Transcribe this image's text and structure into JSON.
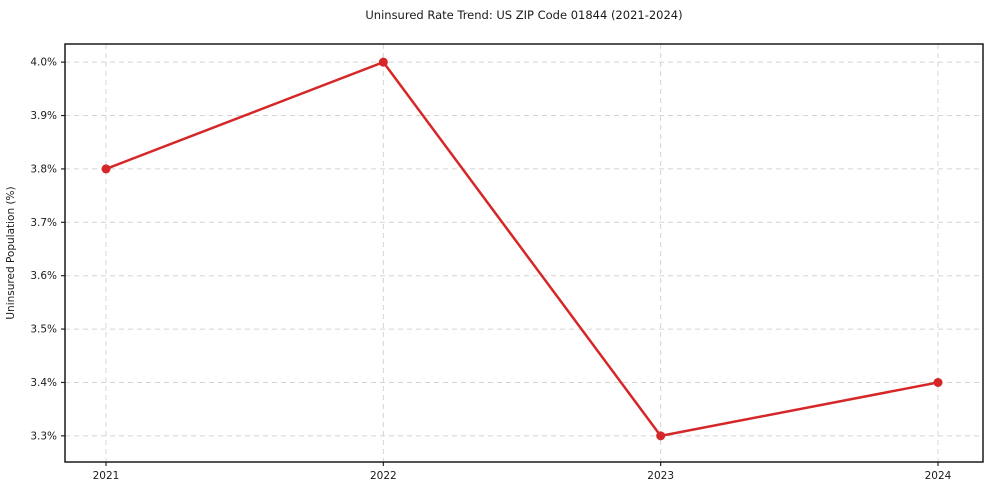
{
  "chart_data": {
    "type": "line",
    "title": "Uninsured Rate Trend: US ZIP Code 01844 (2021-2024)",
    "xlabel": "",
    "ylabel": "Uninsured Population (%)",
    "x": [
      "2021",
      "2022",
      "2023",
      "2024"
    ],
    "values": [
      3.8,
      4.0,
      3.3,
      3.4
    ],
    "yticks": [
      3.3,
      3.4,
      3.5,
      3.6,
      3.7,
      3.8,
      3.9,
      4.0
    ],
    "ytick_labels": [
      "3.3%",
      "3.4%",
      "3.5%",
      "3.6%",
      "3.7%",
      "3.8%",
      "3.9%",
      "4.0%"
    ],
    "ylim": [
      3.251,
      4.034
    ],
    "grid": true,
    "legend_position": "none",
    "line_color": "#d62728",
    "marker": "circle"
  }
}
